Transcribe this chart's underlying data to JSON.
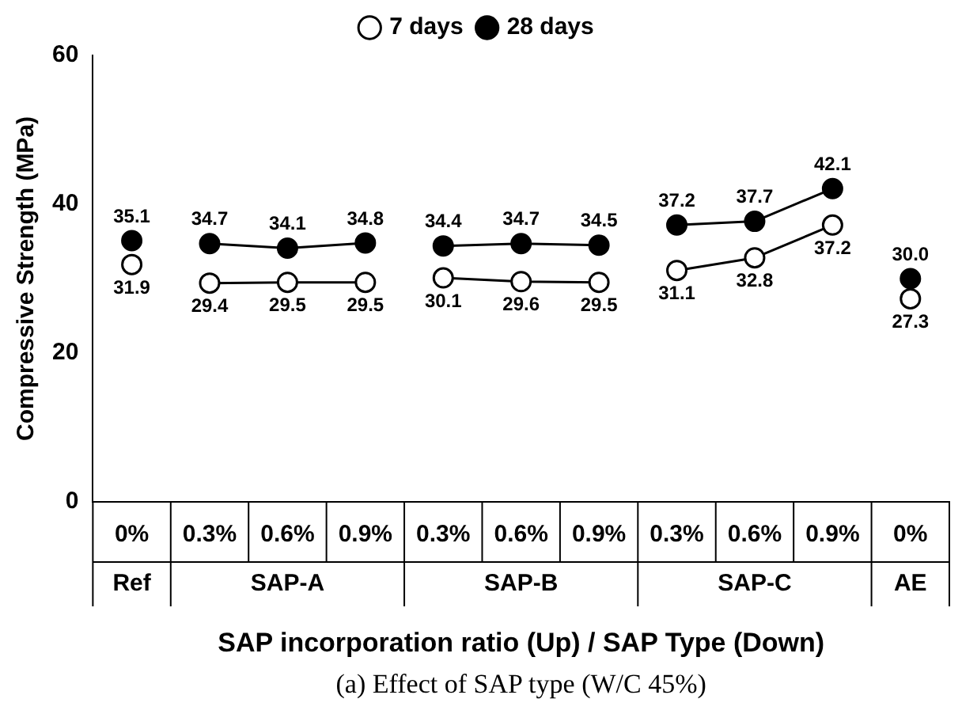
{
  "chart_data": {
    "type": "line",
    "ylabel": "Compressive Strength (MPa)",
    "xlabel": "SAP incorporation ratio (Up) / SAP Type (Down)",
    "categories": [
      "0%",
      "0.3%",
      "0.6%",
      "0.9%",
      "0.3%",
      "0.6%",
      "0.9%",
      "0.3%",
      "0.6%",
      "0.9%",
      "0%"
    ],
    "series": [
      {
        "name": "7 days",
        "color": "#000000",
        "values": [
          null,
          29.4,
          29.5,
          29.5,
          30.1,
          29.6,
          29.5,
          31.1,
          32.8,
          37.2,
          null
        ],
        "value_labels": [
          null,
          "29.4",
          "29.5",
          "29.5",
          "30.1",
          "29.6",
          "29.5",
          "31.1",
          "32.8",
          "37.2",
          null
        ]
      },
      {
        "name": "28 days",
        "color": "#000000",
        "values": [
          null,
          34.7,
          34.1,
          34.8,
          34.4,
          34.7,
          34.5,
          37.2,
          37.7,
          42.1,
          null
        ],
        "value_labels": [
          null,
          "34.7",
          "34.1",
          "34.8",
          "34.4",
          "34.7",
          "34.5",
          "37.2",
          "37.7",
          "42.1",
          null
        ]
      },
      {
        "type": "scatter",
        "color": "#000000",
        "values": [
          31.9,
          null,
          null,
          null,
          null,
          null,
          null,
          null,
          null,
          null,
          27.3
        ],
        "value_labels": [
          "31.9",
          null,
          null,
          null,
          null,
          null,
          null,
          null,
          null,
          null,
          "27.3"
        ]
      },
      {
        "type": "scatter",
        "color": "#000000",
        "values": [
          35.1,
          null,
          null,
          null,
          null,
          null,
          null,
          null,
          null,
          null,
          30.0
        ],
        "value_labels": [
          "35.1",
          null,
          null,
          null,
          null,
          null,
          null,
          null,
          null,
          null,
          "30.0"
        ]
      }
    ],
    "ylim": [
      0,
      60
    ],
    "yticks": [
      0,
      20,
      40,
      60
    ],
    "grid": false,
    "legend": "top",
    "marker": "circle",
    "line_style": "solid",
    "annotations": [
      "Ref",
      "SAP-A",
      "SAP-B",
      "SAP-C",
      "AE",
      "(a) Effect of SAP type (W/C 45%)"
    ]
  }
}
